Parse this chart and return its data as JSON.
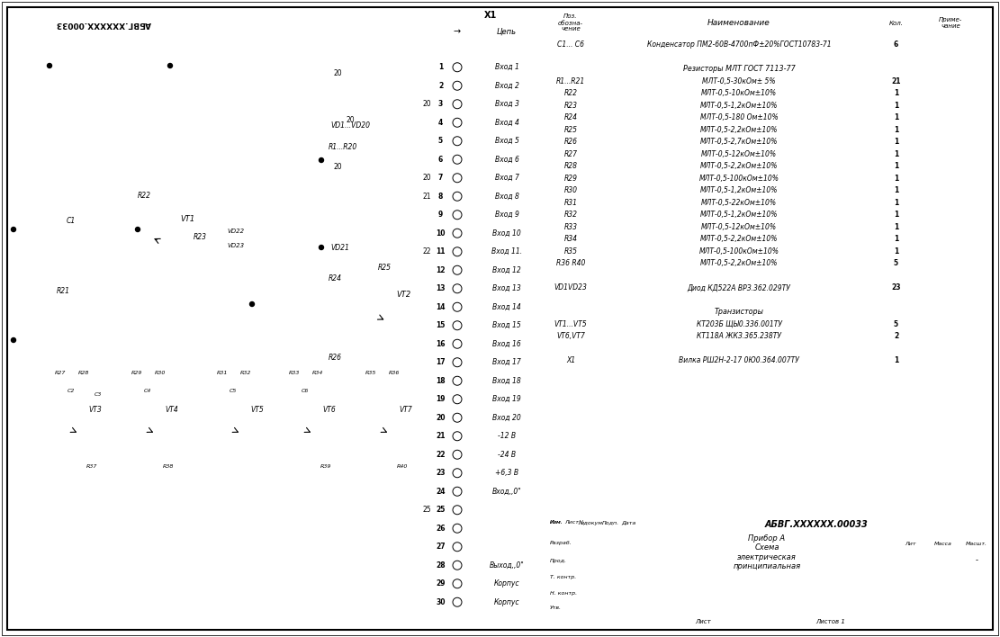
{
  "bg_color": "#ffffff",
  "connector_rows": [
    [
      "1",
      "Вход 1"
    ],
    [
      "2",
      "Вход 2"
    ],
    [
      "3",
      "Вход 3"
    ],
    [
      "4",
      "Вход 4"
    ],
    [
      "5",
      "Вход 5"
    ],
    [
      "6",
      "Вход 6"
    ],
    [
      "7",
      "Вход 7"
    ],
    [
      "8",
      "Вход 8"
    ],
    [
      "9",
      "Вход 9"
    ],
    [
      "10",
      "Вход 10"
    ],
    [
      "11",
      "Вход 11."
    ],
    [
      "12",
      "Вход 12"
    ],
    [
      "13",
      "Вход 13"
    ],
    [
      "14",
      "Вход 14"
    ],
    [
      "15",
      "Вход 15"
    ],
    [
      "16",
      "Вход 16"
    ],
    [
      "17",
      "Вход 17"
    ],
    [
      "18",
      "Вход 18"
    ],
    [
      "19",
      "Вход 19"
    ],
    [
      "20",
      "Вход 20"
    ],
    [
      "21",
      "-12 В"
    ],
    [
      "22",
      "-24 В"
    ],
    [
      "23",
      "+6,3 В"
    ],
    [
      "24",
      "Вход,,0\""
    ],
    [
      "25",
      ""
    ],
    [
      "26",
      ""
    ],
    [
      "27",
      ""
    ],
    [
      "28",
      "Выход,,0\""
    ],
    [
      "29",
      "Корпус"
    ],
    [
      "30",
      "Корпус"
    ]
  ],
  "bom_rows": [
    [
      "C1... C6",
      "Конденсатор ПМ2-60В-4700пФ±20%ГОСТ10783-71",
      "6",
      false
    ],
    [
      "",
      "",
      "",
      false
    ],
    [
      "",
      "Резисторы МЛТ ГОСТ 7113-77",
      "",
      true
    ],
    [
      "R1...R21",
      "МЛТ-0,5-30кОм± 5%",
      "21",
      false
    ],
    [
      "R22",
      "МЛТ-0,5-10кОм±10%",
      "1",
      false
    ],
    [
      "R23",
      "МЛТ-0,5-1,2кОм±10%",
      "1",
      false
    ],
    [
      "R24",
      "МЛТ-0,5-180 Ом±10%",
      "1",
      false
    ],
    [
      "R25",
      "МЛТ-0,5-2,2кОм±10%",
      "1",
      false
    ],
    [
      "R26",
      "МЛТ-0,5-2,7кОм±10%",
      "1",
      false
    ],
    [
      "R27",
      "МЛТ-0,5-12кОм±10%",
      "1",
      false
    ],
    [
      "R28",
      "МЛТ-0,5-2,2кОм±10%",
      "1",
      false
    ],
    [
      "R29",
      "МЛТ-0,5-100кОм±10%",
      "1",
      false
    ],
    [
      "R30",
      "МЛТ-0,5-1,2кОм±10%",
      "1",
      false
    ],
    [
      "R31",
      "МЛТ-0,5-22кОм±10%",
      "1",
      false
    ],
    [
      "R32",
      "МЛТ-0,5-1,2кОм±10%",
      "1",
      false
    ],
    [
      "R33",
      "МЛТ-0,5-12кОм±10%",
      "1",
      false
    ],
    [
      "R34",
      "МЛТ-0,5-2,2кОм±10%",
      "1",
      false
    ],
    [
      "R35",
      "МЛТ-0,5-100кОм±10%",
      "1",
      false
    ],
    [
      "R36 R40",
      "МЛТ-0,5-2,2кОм±10%",
      "5",
      false
    ],
    [
      "",
      "",
      "",
      false
    ],
    [
      "VD1VD23",
      "Диод КД522А ВРЗ.362.029ТУ",
      "23",
      false
    ],
    [
      "",
      "",
      "",
      false
    ],
    [
      "",
      "Транзисторы",
      "",
      true
    ],
    [
      "VT1...VT5",
      "КТ203Б ЩЫ0.336.001ТУ",
      "5",
      false
    ],
    [
      "VT6,VT7",
      "КТ118А ЖКЗ.365.238ТУ",
      "2",
      false
    ],
    [
      "",
      "",
      "",
      false
    ],
    [
      "X1",
      "Вилка РШ2Н-2-17 0Ю0.364.007ТУ",
      "1",
      false
    ]
  ],
  "doc_number": "АБВГ.XXXXXX.00033",
  "doc_title": "Прибор А\nСхема\nэлектрическая\nпринципиальная"
}
